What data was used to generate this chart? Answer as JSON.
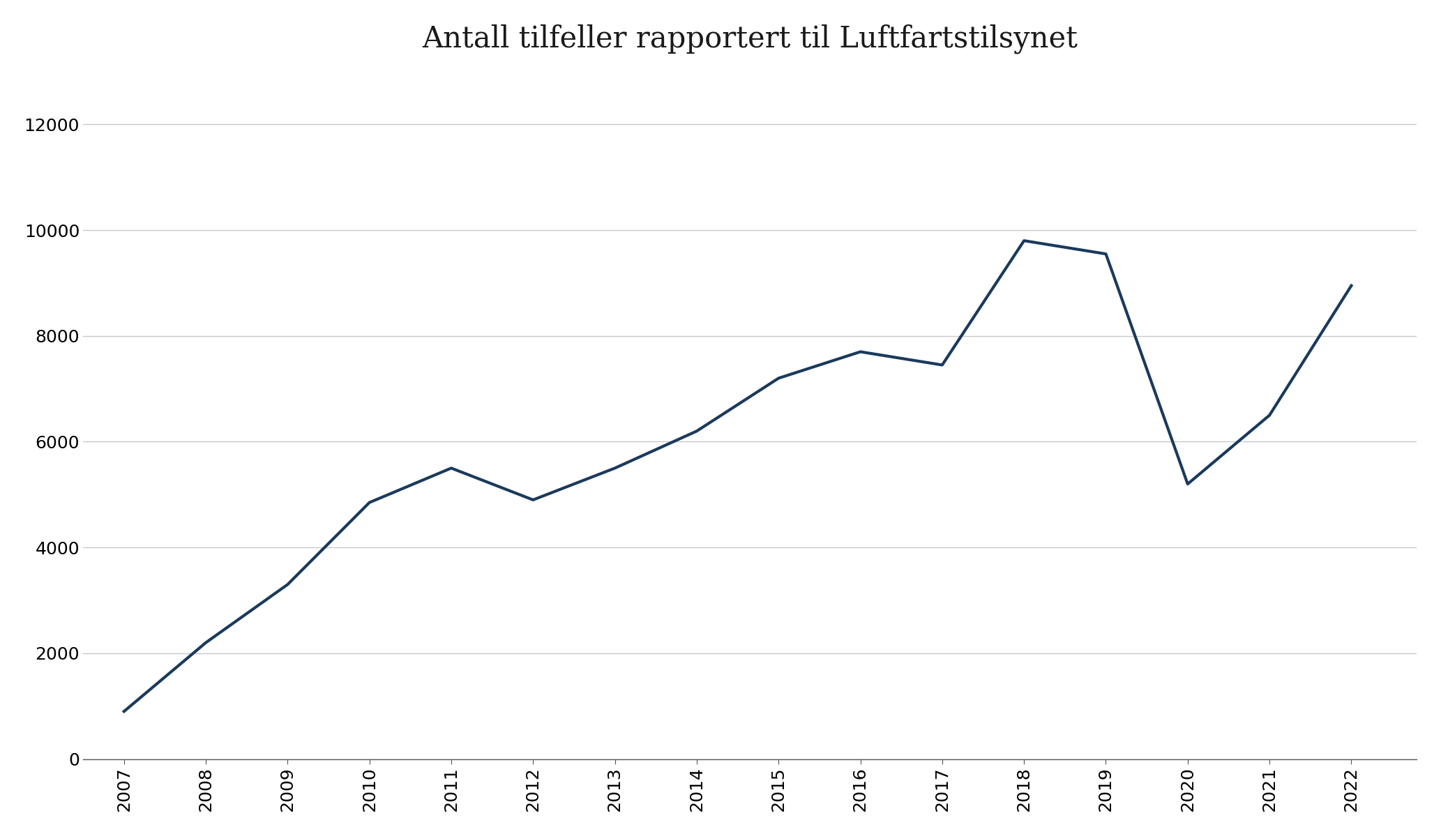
{
  "title": "Antall tilfeller rapportert til Luftfartstilsynet",
  "years": [
    2007,
    2008,
    2009,
    2010,
    2011,
    2012,
    2013,
    2014,
    2015,
    2016,
    2017,
    2018,
    2019,
    2020,
    2021,
    2022
  ],
  "values": [
    900,
    2200,
    3300,
    4850,
    5500,
    4900,
    5500,
    6200,
    7200,
    7700,
    7450,
    9800,
    9550,
    5200,
    6500,
    8950
  ],
  "line_color": "#1a3a5c",
  "line_width": 3.0,
  "background_color": "#ffffff",
  "grid_color": "#c8c8c8",
  "ylim": [
    0,
    13000
  ],
  "yticks": [
    0,
    2000,
    4000,
    6000,
    8000,
    10000,
    12000
  ],
  "title_fontsize": 30,
  "tick_fontsize": 18,
  "spine_color": "#555555"
}
